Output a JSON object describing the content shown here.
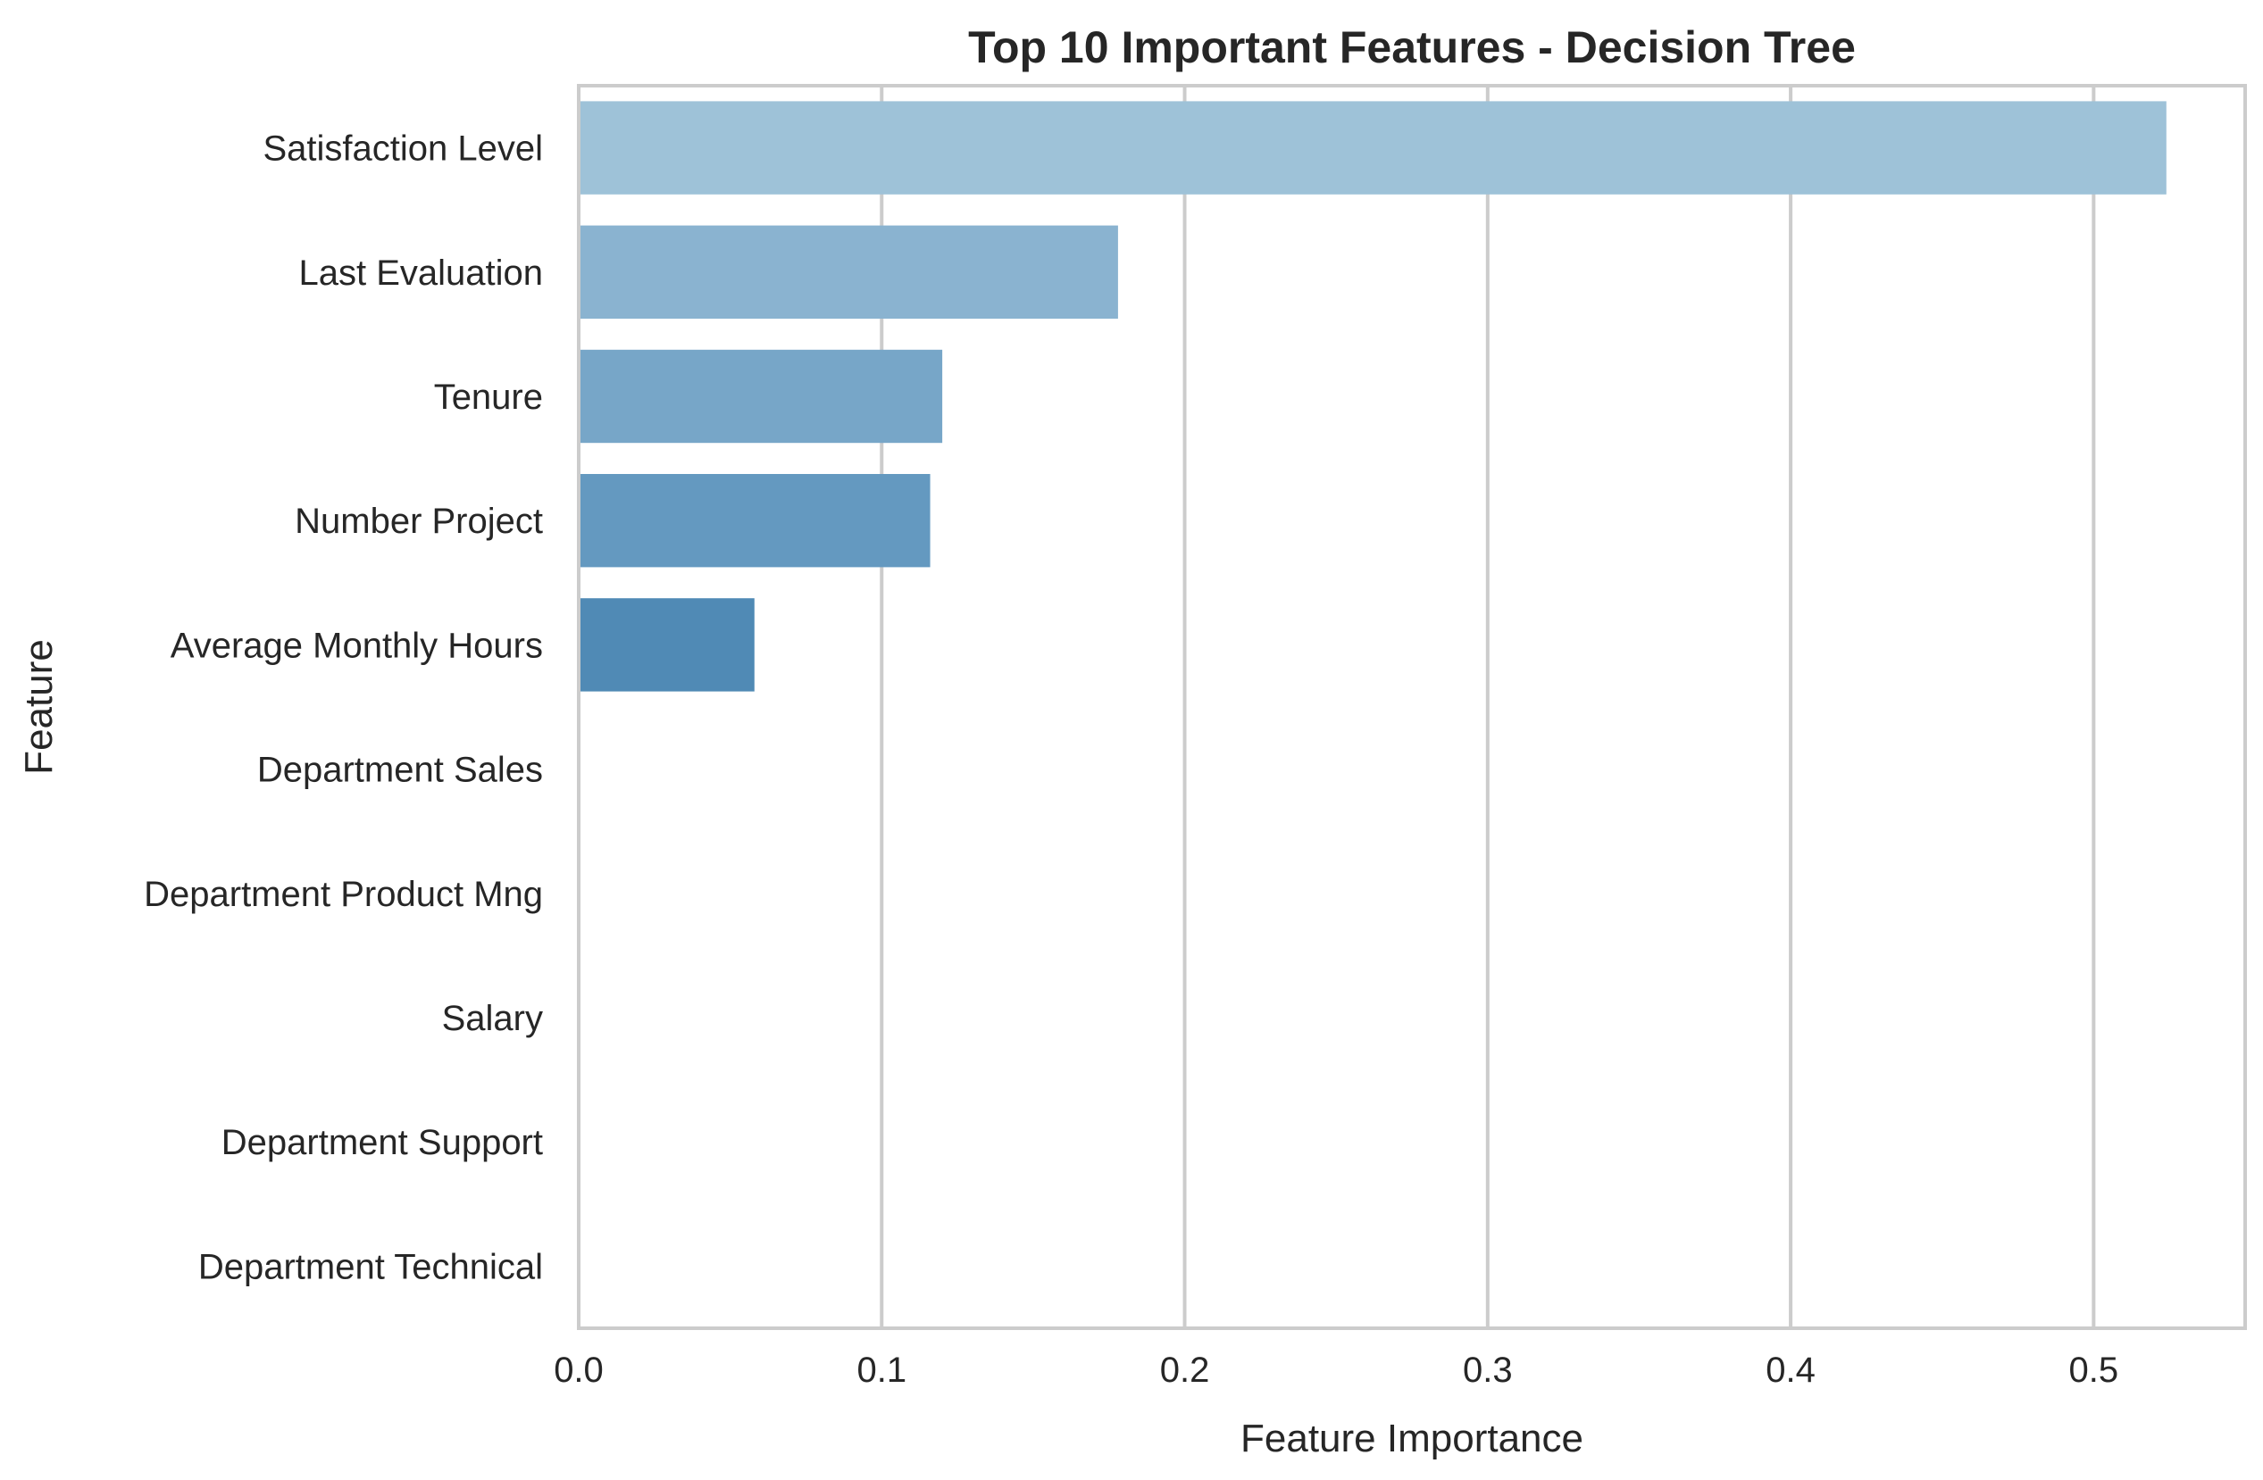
{
  "chart_data": {
    "type": "bar",
    "orientation": "horizontal",
    "title": "Top 10 Important Features - Decision Tree",
    "xlabel": "Feature Importance",
    "ylabel": "Feature",
    "categories": [
      "Satisfaction Level",
      "Last Evaluation",
      "Tenure",
      "Number Project",
      "Average Monthly Hours",
      "Department Sales",
      "Department Product Mng",
      "Salary",
      "Department Support",
      "Department Technical"
    ],
    "values": [
      0.524,
      0.178,
      0.12,
      0.116,
      0.058,
      0,
      0,
      0,
      0,
      0
    ],
    "bar_colors": [
      "#9ec2d8",
      "#8ab3d0",
      "#77a6c8",
      "#6499c0",
      "#508ab5",
      "#3d7bad",
      "#2e6da5",
      "#21609c",
      "#175392",
      "#0e4688"
    ],
    "xlim": [
      0,
      0.55
    ],
    "xticks": [
      0.0,
      0.1,
      0.2,
      0.3,
      0.4,
      0.5
    ],
    "xtick_labels": [
      "0.0",
      "0.1",
      "0.2",
      "0.3",
      "0.4",
      "0.5"
    ],
    "grid": "x-axis vertical gridlines",
    "legend": "none",
    "colors": {
      "grid": "#cccccc",
      "spine": "#cccccc",
      "text": "#262626",
      "background": "#ffffff"
    }
  }
}
